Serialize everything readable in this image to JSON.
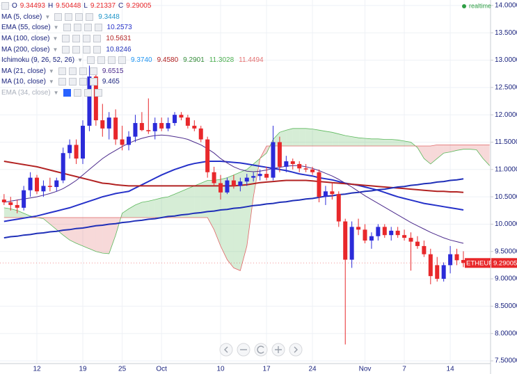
{
  "chart_data": {
    "type": "candlestick",
    "symbol": "ETHEUR",
    "status": "realtime",
    "ohlc_labels": [
      "O",
      "H",
      "L",
      "C"
    ],
    "up_color": "#2b2bd9",
    "down_color": "#e8282b",
    "grid": true,
    "categories": [
      null,
      null,
      null,
      null,
      null,
      "12",
      null,
      null,
      null,
      null,
      null,
      null,
      "19",
      null,
      null,
      null,
      null,
      null,
      "25",
      null,
      null,
      null,
      null,
      null,
      "Oct",
      null,
      null,
      null,
      null,
      null,
      null,
      null,
      null,
      "10",
      null,
      null,
      null,
      null,
      null,
      null,
      "17",
      null,
      null,
      null,
      null,
      null,
      null,
      "24",
      null,
      null,
      null,
      null,
      null,
      null,
      null,
      "Nov",
      null,
      null,
      null,
      null,
      null,
      "7",
      null,
      null,
      null,
      null,
      null,
      null,
      "14",
      null,
      null,
      null,
      null,
      null,
      null
    ],
    "open": [
      10.45,
      10.4,
      10.35,
      10.3,
      10.62,
      10.85,
      10.6,
      10.7,
      10.68,
      10.8,
      11.3,
      11.45,
      11.2,
      11.8,
      12.7,
      11.9,
      11.75,
      11.95,
      11.55,
      11.45,
      11.6,
      11.85,
      11.72,
      11.7,
      11.85,
      11.75,
      11.85,
      12.0,
      11.95,
      11.8,
      11.75,
      11.55,
      10.95,
      10.75,
      10.58,
      10.8,
      10.7,
      10.78,
      10.85,
      10.88,
      10.92,
      10.85,
      11.5,
      11.05,
      11.15,
      11.1,
      11.02,
      11.0,
      10.95,
      10.5,
      10.6,
      10.55,
      10.05,
      9.35,
      9.95,
      9.9,
      9.7,
      9.78,
      9.95,
      9.8,
      9.88,
      9.8,
      9.75,
      9.68,
      9.6,
      9.45,
      9.25,
      9.0,
      9.25,
      9.45,
      9.34493,
      null,
      null,
      null,
      null
    ],
    "high": [
      10.55,
      10.5,
      10.45,
      10.7,
      10.95,
      10.9,
      10.8,
      10.85,
      10.85,
      11.4,
      11.55,
      11.55,
      11.9,
      12.9,
      12.85,
      12.2,
      12.05,
      12.1,
      11.8,
      11.7,
      12.0,
      12.05,
      12.3,
      11.95,
      11.95,
      11.95,
      12.05,
      12.05,
      12.0,
      11.9,
      11.8,
      11.6,
      11.05,
      10.9,
      10.85,
      10.9,
      10.85,
      10.92,
      10.95,
      11.0,
      11.05,
      11.8,
      11.6,
      11.25,
      11.2,
      11.15,
      11.1,
      11.05,
      11.0,
      10.7,
      10.75,
      10.6,
      10.1,
      10.05,
      10.1,
      10.0,
      9.85,
      10.0,
      10.0,
      9.95,
      9.95,
      9.9,
      9.85,
      9.78,
      9.7,
      9.55,
      9.4,
      9.3,
      9.6,
      9.55,
      9.50448,
      null,
      null,
      null,
      null
    ],
    "low": [
      10.35,
      10.25,
      10.2,
      10.25,
      10.5,
      10.55,
      10.5,
      10.6,
      10.6,
      10.75,
      11.2,
      11.1,
      11.1,
      11.7,
      11.8,
      11.6,
      11.55,
      11.45,
      11.35,
      11.35,
      11.5,
      11.7,
      11.65,
      11.55,
      11.7,
      11.7,
      11.8,
      11.9,
      11.75,
      11.7,
      11.5,
      10.85,
      10.7,
      10.45,
      10.55,
      10.65,
      10.6,
      10.7,
      10.78,
      10.8,
      10.8,
      10.8,
      10.95,
      10.95,
      11.0,
      10.95,
      10.95,
      10.9,
      10.4,
      10.35,
      10.45,
      9.95,
      7.8,
      9.2,
      9.8,
      9.65,
      9.55,
      9.7,
      9.75,
      9.7,
      9.75,
      9.7,
      9.15,
      9.55,
      9.4,
      8.9,
      8.95,
      8.95,
      9.1,
      9.25,
      9.21337,
      null,
      null,
      null,
      null
    ],
    "close": [
      10.4,
      10.35,
      10.3,
      10.62,
      10.85,
      10.6,
      10.7,
      10.68,
      10.8,
      11.3,
      11.45,
      11.2,
      11.8,
      12.7,
      11.9,
      11.75,
      11.95,
      11.55,
      11.45,
      11.6,
      11.85,
      11.72,
      11.7,
      11.85,
      11.75,
      11.85,
      12.0,
      11.95,
      11.8,
      11.75,
      11.55,
      10.95,
      10.75,
      10.58,
      10.8,
      10.7,
      10.78,
      10.85,
      10.88,
      10.92,
      10.85,
      11.5,
      11.05,
      11.15,
      11.1,
      11.02,
      11.0,
      10.95,
      10.5,
      10.6,
      10.55,
      10.05,
      9.35,
      9.95,
      9.9,
      9.7,
      9.78,
      9.95,
      9.8,
      9.88,
      9.8,
      9.75,
      9.68,
      9.6,
      9.45,
      9.05,
      9.0,
      9.25,
      9.45,
      9.34,
      9.29005,
      null,
      null,
      null,
      null
    ],
    "ylim": [
      7.45,
      14.1
    ],
    "yticks": [
      {
        "value": 7.5,
        "label": "7.50000"
      },
      {
        "value": 8,
        "label": "8.00000"
      },
      {
        "value": 8.5,
        "label": "8.50000"
      },
      {
        "value": 9,
        "label": "9.00000"
      },
      {
        "value": 9.5,
        "label": "9.50000"
      },
      {
        "value": 10,
        "label": "10.0000"
      },
      {
        "value": 10.5,
        "label": "10.5000"
      },
      {
        "value": 11,
        "label": "11.0000"
      },
      {
        "value": 11.5,
        "label": "11.5000"
      },
      {
        "value": 12,
        "label": "12.0000"
      },
      {
        "value": 12.5,
        "label": "12.5000"
      },
      {
        "value": 13,
        "label": "13.0000"
      },
      {
        "value": 13.5,
        "label": "13.5000"
      },
      {
        "value": 14,
        "label": "14.0000"
      }
    ],
    "indicators": [
      {
        "name": "MA (5, close)",
        "color": "#2196c9",
        "readouts": [
          "9.3448"
        ]
      },
      {
        "name": "EMA (55, close)",
        "color": "#2531c9",
        "readouts": [
          "10.2573"
        ],
        "values": [
          10.05,
          10.07,
          10.09,
          10.11,
          10.13,
          10.15,
          10.18,
          10.21,
          10.24,
          10.27,
          10.3,
          10.34,
          10.38,
          10.42,
          10.46,
          10.5,
          10.53,
          10.56,
          10.58,
          10.6,
          10.66,
          10.72,
          10.78,
          10.84,
          10.9,
          10.95,
          11.0,
          11.04,
          11.08,
          11.11,
          11.13,
          11.15,
          11.15,
          11.15,
          11.14,
          11.13,
          11.12,
          11.1,
          11.08,
          11.06,
          11.04,
          11.02,
          11.0,
          10.98,
          10.95,
          10.92,
          10.9,
          10.88,
          10.85,
          10.83,
          10.81,
          10.78,
          10.75,
          10.73,
          10.71,
          10.68,
          10.65,
          10.62,
          10.58,
          10.54,
          10.5,
          10.47,
          10.44,
          10.41,
          10.38,
          10.36,
          10.34,
          10.32,
          10.3,
          10.28,
          10.26,
          null,
          null,
          null,
          null
        ]
      },
      {
        "name": "MA (100, close)",
        "color": "#b22222",
        "readouts": [
          "10.5631"
        ],
        "values": [
          11.15,
          11.13,
          11.11,
          11.09,
          11.07,
          11.05,
          11.02,
          10.99,
          10.96,
          10.93,
          10.9,
          10.87,
          10.84,
          10.81,
          10.78,
          10.75,
          10.74,
          10.72,
          10.71,
          10.7,
          10.7,
          10.7,
          10.7,
          10.7,
          10.7,
          10.7,
          10.7,
          10.7,
          10.7,
          10.7,
          10.7,
          10.7,
          10.7,
          10.7,
          10.7,
          10.7,
          10.71,
          10.72,
          10.74,
          10.76,
          10.77,
          10.78,
          10.79,
          10.8,
          10.8,
          10.8,
          10.8,
          10.79,
          10.78,
          10.77,
          10.76,
          10.75,
          10.74,
          10.73,
          10.72,
          10.71,
          10.7,
          10.69,
          10.68,
          10.67,
          10.66,
          10.65,
          10.64,
          10.63,
          10.62,
          10.61,
          10.6,
          10.6,
          10.59,
          10.59,
          10.58,
          null,
          null,
          null,
          null
        ]
      },
      {
        "name": "MA (200, close)",
        "color": "#1f2fb8",
        "readouts": [
          "10.8246"
        ],
        "values": [
          9.75,
          9.77,
          9.78,
          9.8,
          9.81,
          9.83,
          9.84,
          9.86,
          9.87,
          9.89,
          9.9,
          9.92,
          9.93,
          9.95,
          9.97,
          9.98,
          10.0,
          10.01,
          10.03,
          10.04,
          10.06,
          10.07,
          10.09,
          10.1,
          10.12,
          10.14,
          10.15,
          10.17,
          10.18,
          10.2,
          10.21,
          10.23,
          10.24,
          10.26,
          10.27,
          10.29,
          10.3,
          10.32,
          10.34,
          10.35,
          10.37,
          10.38,
          10.4,
          10.41,
          10.43,
          10.44,
          10.46,
          10.47,
          10.49,
          10.51,
          10.52,
          10.54,
          10.55,
          10.57,
          10.58,
          10.6,
          10.61,
          10.63,
          10.64,
          10.66,
          10.68,
          10.69,
          10.71,
          10.72,
          10.74,
          10.75,
          10.77,
          10.78,
          10.8,
          10.81,
          10.83,
          null,
          null,
          null,
          null
        ]
      },
      {
        "name": "Ichimoku (9, 26, 52, 26)",
        "readouts": [
          "9.3740",
          "9.4580",
          "9.2901",
          "11.3028",
          "11.4494"
        ],
        "readout_colors": [
          "#2196f3",
          "#b22222",
          "#388e3c",
          "#4caf50",
          "#e57373"
        ],
        "span_a_color": "#5cb85c",
        "span_b_color": "#e06666",
        "span_a": [
          10.3,
          10.28,
          10.25,
          10.2,
          10.15,
          10.12,
          10.1,
          10.0,
          9.9,
          9.8,
          9.71,
          9.65,
          9.6,
          9.55,
          9.5,
          9.47,
          9.46,
          9.8,
          10.2,
          10.28,
          10.35,
          10.4,
          10.42,
          10.45,
          10.48,
          10.5,
          10.55,
          10.6,
          10.65,
          10.7,
          10.75,
          10.8,
          10.8,
          10.82,
          10.85,
          10.9,
          10.95,
          11.0,
          11.1,
          11.2,
          11.3,
          11.55,
          11.68,
          11.72,
          11.75,
          11.75,
          11.75,
          11.74,
          11.72,
          11.7,
          11.68,
          11.65,
          11.62,
          11.6,
          11.58,
          11.57,
          11.56,
          11.56,
          11.55,
          11.55,
          11.54,
          11.52,
          11.5,
          11.4,
          11.2,
          11.1,
          11.2,
          11.3,
          11.32,
          11.35,
          11.37,
          11.37,
          11.36,
          11.2,
          11.07
        ],
        "span_b": [
          10.12,
          10.12,
          10.12,
          10.12,
          10.12,
          10.12,
          10.12,
          10.12,
          10.12,
          10.12,
          10.12,
          10.12,
          10.12,
          10.12,
          10.12,
          10.12,
          10.12,
          10.12,
          10.12,
          10.12,
          10.12,
          10.12,
          10.12,
          10.12,
          10.12,
          10.12,
          10.12,
          10.12,
          10.12,
          10.12,
          10.12,
          10.12,
          9.9,
          9.6,
          9.35,
          9.2,
          9.15,
          9.6,
          10.5,
          11.2,
          11.43,
          11.43,
          11.43,
          11.43,
          11.43,
          11.43,
          11.43,
          11.43,
          11.43,
          11.43,
          11.43,
          11.43,
          11.43,
          11.43,
          11.43,
          11.43,
          11.43,
          11.43,
          11.43,
          11.43,
          11.43,
          11.43,
          11.43,
          11.43,
          11.43,
          11.43,
          11.45,
          11.45,
          11.45,
          11.45,
          11.45,
          11.45,
          11.45,
          11.45,
          11.45
        ]
      },
      {
        "name": "MA (21, close)",
        "color": "#4b2a8c",
        "readouts": [
          "9.6515"
        ],
        "values": [
          10.4,
          10.42,
          10.44,
          10.46,
          10.48,
          10.5,
          10.53,
          10.56,
          10.6,
          10.65,
          10.72,
          10.8,
          10.9,
          11.0,
          11.1,
          11.2,
          11.28,
          11.35,
          11.42,
          11.48,
          11.53,
          11.57,
          11.6,
          11.62,
          11.63,
          11.62,
          11.6,
          11.58,
          11.55,
          11.5,
          11.45,
          11.38,
          11.3,
          11.2,
          11.12,
          11.05,
          11.0,
          10.97,
          10.96,
          10.97,
          10.99,
          11.02,
          11.04,
          11.06,
          11.07,
          11.07,
          11.05,
          11.02,
          10.98,
          10.93,
          10.88,
          10.82,
          10.75,
          10.68,
          10.6,
          10.52,
          10.45,
          10.38,
          10.31,
          10.24,
          10.17,
          10.1,
          10.03,
          9.97,
          9.91,
          9.85,
          9.8,
          9.75,
          9.71,
          9.68,
          9.65,
          null,
          null,
          null,
          null
        ]
      },
      {
        "name": "MA (10, close)",
        "color": "#1a237e",
        "readouts": [
          "9.465"
        ]
      },
      {
        "name": "EMA (34, close)",
        "hidden": true
      }
    ]
  }
}
